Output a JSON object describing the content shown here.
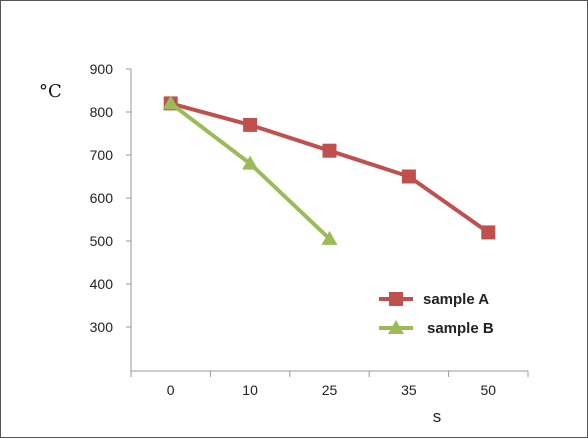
{
  "chart_data": {
    "type": "line",
    "title": "",
    "ylabel": "°C",
    "xlabel": "s",
    "ylim": [
      200,
      900
    ],
    "yticks": [
      900,
      800,
      700,
      600,
      500,
      400,
      300
    ],
    "categories": [
      "0",
      "10",
      "25",
      "35",
      "50"
    ],
    "grid": false,
    "legend_position": "bottom-right",
    "series": [
      {
        "name": "sample A",
        "marker": "square",
        "color": "#c0504d",
        "values": [
          820,
          770,
          710,
          650,
          520
        ]
      },
      {
        "name": "sample B",
        "marker": "triangle",
        "color": "#9bbb59",
        "values": [
          820,
          680,
          505,
          null,
          null
        ]
      }
    ]
  }
}
